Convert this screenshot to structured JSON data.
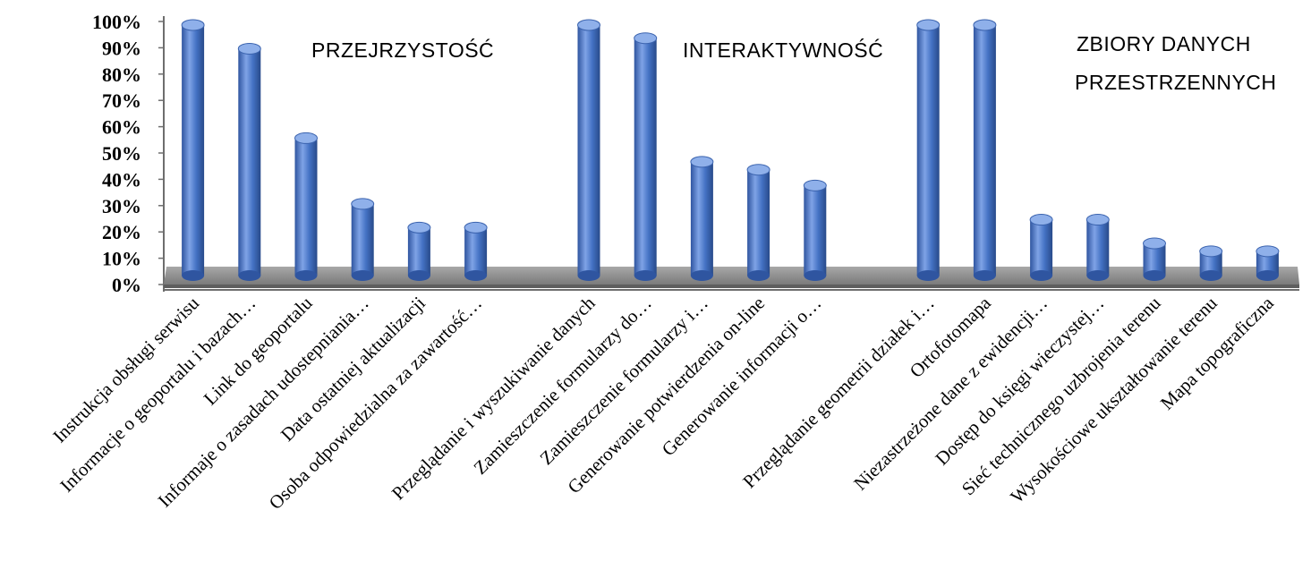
{
  "chart_data": {
    "type": "bar",
    "style": "3d-cylinder",
    "bar_color": "#4472C4",
    "floor_color": "#8C8C8C",
    "ylim": [
      0,
      100
    ],
    "yticks": [
      "0%",
      "10%",
      "20%",
      "30%",
      "40%",
      "50%",
      "60%",
      "70%",
      "80%",
      "90%",
      "100%"
    ],
    "grid": false,
    "groups": [
      {
        "title_lines": [
          "PRZEJRZYSTOŚĆ"
        ]
      },
      {
        "title_lines": [
          "INTERAKTYWNOŚĆ"
        ]
      },
      {
        "title_lines": [
          "ZBIORY DANYCH",
          "PRZESTRZENNYCH"
        ]
      }
    ],
    "categories": [
      "Instrukcja obsługi serwisu",
      "Informacje o geoportalu i bazach…",
      "Link do geoportalu",
      "Informaje o zasadach udostepniania…",
      "Data ostatniej aktualizacji",
      "Osoba odpowiedzialna za zawartość…",
      "",
      "Przeglądanie i wyszukiwanie danych",
      "Zamieszczenie formularzy do…",
      "Zamieszczenie formularzy  i…",
      "Generowanie potwierdzenia on-line",
      "Generowanie informacji o…",
      "",
      "Przeglądanie geometrii działek i…",
      "Ortofotomapa",
      "Niezastrzeżone dane z ewidencji…",
      "Dostęp do księgi wieczystej…",
      "Sieć technicznego uzbrojenia terenu",
      "Wysokościowe ukształtowanie terenu",
      "Mapa topograficzna"
    ],
    "values": [
      100,
      91,
      57,
      32,
      23,
      23,
      null,
      100,
      95,
      48,
      45,
      39,
      null,
      100,
      100,
      26,
      26,
      17,
      14,
      14
    ]
  }
}
